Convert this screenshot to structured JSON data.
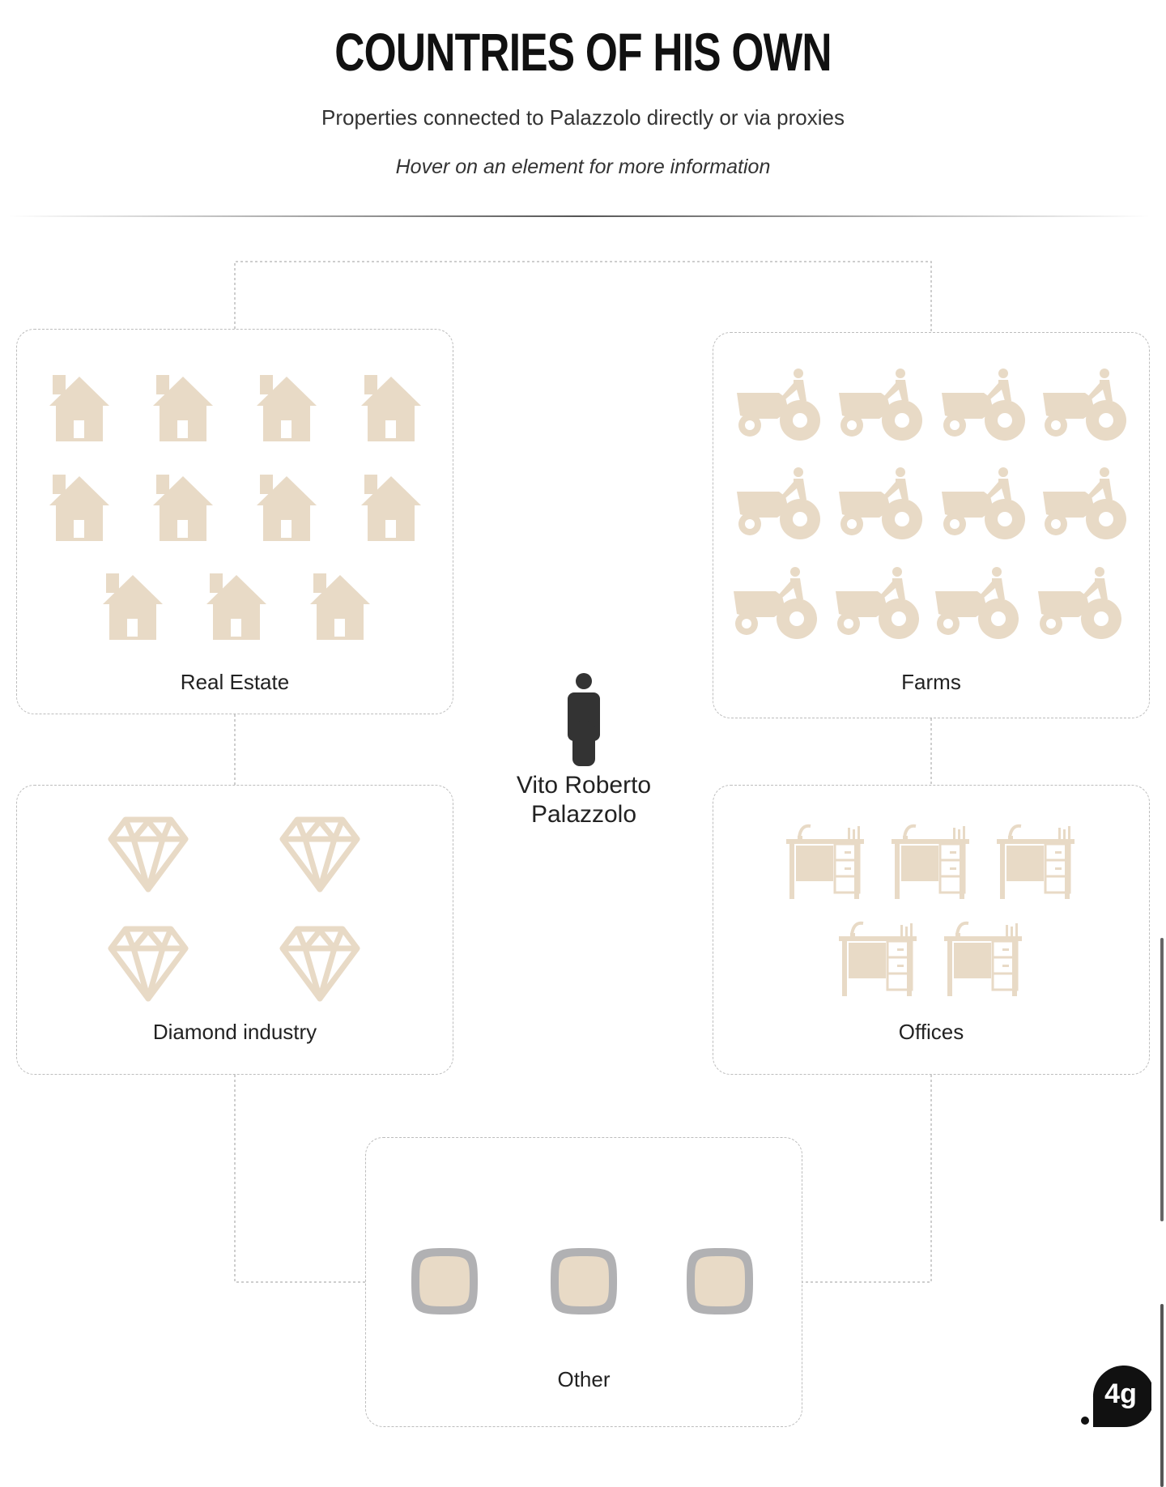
{
  "header": {
    "title": "COUNTRIES OF HIS OWN",
    "subtitle": "Properties connected to Palazzolo directly or via proxies",
    "hint": "Hover on an element for more information"
  },
  "center": {
    "person_name_line1": "Vito Roberto",
    "person_name_line2": "Palazzolo",
    "icon": "person-icon"
  },
  "groups": {
    "real_estate": {
      "label": "Real Estate",
      "count": 11,
      "icon": "house-icon"
    },
    "farms": {
      "label": "Farms",
      "count": 12,
      "icon": "tractor-icon"
    },
    "diamond_industry": {
      "label": "Diamond industry",
      "count": 4,
      "icon": "diamond-icon"
    },
    "offices": {
      "label": "Offices",
      "count": 5,
      "icon": "desk-icon"
    },
    "other": {
      "label": "Other",
      "count": 3,
      "icon": "rounded-square-icon"
    }
  },
  "colors": {
    "icon_fill": "#e8dac6",
    "icon_ring": "#b1b1b3",
    "person": "#333333",
    "dashed_border": "#bdbdbd"
  },
  "logo": {
    "text": "4g"
  }
}
